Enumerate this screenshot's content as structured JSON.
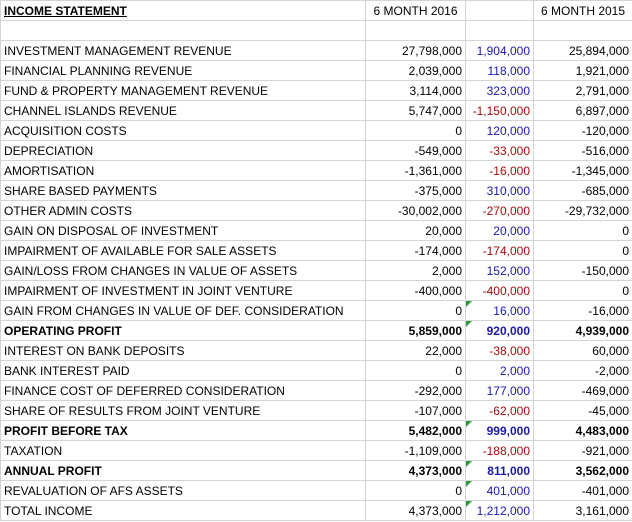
{
  "header": [
    "INCOME STATEMENT",
    "6 MONTH 2016",
    "6 MONTH 2015"
  ],
  "rows": [
    {
      "label": "INVESTMENT MANAGEMENT REVENUE",
      "y2016": "27,798,000",
      "change": "1,904,000",
      "y2015": "25,894,000"
    },
    {
      "label": "FINANCIAL PLANNING REVENUE",
      "y2016": "2,039,000",
      "change": "118,000",
      "y2015": "1,921,000"
    },
    {
      "label": "FUND & PROPERTY MANAGEMENT REVENUE",
      "y2016": "3,114,000",
      "change": "323,000",
      "y2015": "2,791,000"
    },
    {
      "label": "CHANNEL ISLANDS REVENUE",
      "y2016": "5,747,000",
      "change": "-1,150,000",
      "y2015": "6,897,000"
    },
    {
      "label": "ACQUISITION COSTS",
      "y2016": "0",
      "change": "120,000",
      "y2015": "-120,000"
    },
    {
      "label": "DEPRECIATION",
      "y2016": "-549,000",
      "change": "-33,000",
      "y2015": "-516,000"
    },
    {
      "label": "AMORTISATION",
      "y2016": "-1,361,000",
      "change": "-16,000",
      "y2015": "-1,345,000"
    },
    {
      "label": "SHARE BASED PAYMENTS",
      "y2016": "-375,000",
      "change": "310,000",
      "y2015": "-685,000"
    },
    {
      "label": "OTHER ADMIN COSTS",
      "y2016": "-30,002,000",
      "change": "-270,000",
      "y2015": "-29,732,000"
    },
    {
      "label": "GAIN ON DISPOSAL OF INVESTMENT",
      "y2016": "20,000",
      "change": "20,000",
      "y2015": "0"
    },
    {
      "label": "IMPAIRMENT OF AVAILABLE FOR SALE ASSETS",
      "y2016": "-174,000",
      "change": "-174,000",
      "y2015": "0"
    },
    {
      "label": "GAIN/LOSS FROM CHANGES IN VALUE OF ASSETS",
      "y2016": "2,000",
      "change": "152,000",
      "y2015": "-150,000"
    },
    {
      "label": "IMPAIRMENT OF INVESTMENT IN JOINT VENTURE",
      "y2016": "-400,000",
      "change": "-400,000",
      "y2015": "0"
    },
    {
      "label": "GAIN FROM CHANGES IN VALUE OF DEF. CONSIDERATION",
      "y2016": "0",
      "change": "16,000",
      "y2015": "-16,000"
    },
    {
      "label": "OPERATING PROFIT",
      "y2016": "5,859,000",
      "change": "920,000",
      "y2015": "4,939,000",
      "bold": true
    },
    {
      "label": "INTEREST ON BANK DEPOSITS",
      "y2016": "22,000",
      "change": "-38,000",
      "y2015": "60,000"
    },
    {
      "label": "BANK INTEREST PAID",
      "y2016": "0",
      "change": "2,000",
      "y2015": "-2,000"
    },
    {
      "label": "FINANCE COST OF DEFERRED CONSIDERATION",
      "y2016": "-292,000",
      "change": "177,000",
      "y2015": "-469,000"
    },
    {
      "label": "SHARE OF RESULTS FROM JOINT VENTURE",
      "y2016": "-107,000",
      "change": "-62,000",
      "y2015": "-45,000"
    },
    {
      "label": "PROFIT BEFORE TAX",
      "y2016": "5,482,000",
      "change": "999,000",
      "y2015": "4,483,000",
      "bold": true
    },
    {
      "label": "TAXATION",
      "y2016": "-1,109,000",
      "change": "-188,000",
      "y2015": "-921,000"
    },
    {
      "label": "ANNUAL PROFIT",
      "y2016": "4,373,000",
      "change": "811,000",
      "y2015": "3,562,000",
      "bold": true
    },
    {
      "label": "REVALUATION OF AFS ASSETS",
      "y2016": "0",
      "change": "401,000",
      "y2015": "-401,000"
    },
    {
      "label": "TOTAL INCOME",
      "y2016": "4,373,000",
      "change": "1,212,000",
      "y2015": "3,161,000"
    }
  ]
}
